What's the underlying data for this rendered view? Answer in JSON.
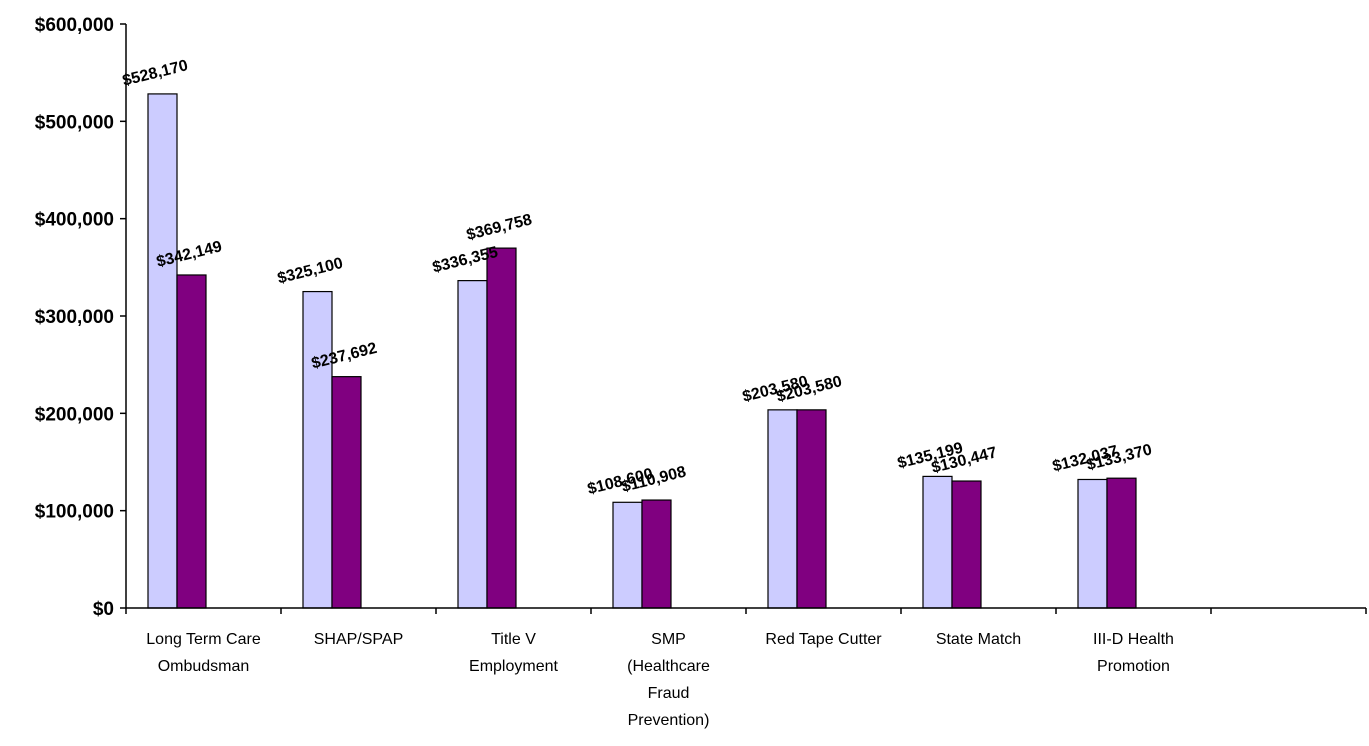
{
  "chart_data": {
    "type": "bar",
    "categories": [
      [
        "Long Term Care",
        "Ombudsman"
      ],
      [
        "SHAP/SPAP"
      ],
      [
        "Title V",
        "Employment"
      ],
      [
        "SMP",
        "(Healthcare",
        "Fraud",
        "Prevention)"
      ],
      [
        "Red Tape Cutter"
      ],
      [
        "State Match"
      ],
      [
        "III-D Health",
        "Promotion"
      ]
    ],
    "series": [
      {
        "values": [
          528170,
          325100,
          336355,
          108600,
          203580,
          135199,
          132037
        ],
        "labels": [
          "$528,170",
          "$325,100",
          "$336,355",
          "$108,600",
          "$203,580",
          "$135,199",
          "$132,037"
        ],
        "color": "#ccccff"
      },
      {
        "values": [
          342149,
          237692,
          369758,
          110908,
          203580,
          130447,
          133370
        ],
        "labels": [
          "$342,149",
          "$237,692",
          "$369,758",
          "$110,908",
          "$203,580",
          "$130,447",
          "$133,370"
        ],
        "color": "#800080"
      }
    ],
    "ylim": [
      0,
      600000
    ],
    "yticks": [
      "$0",
      "$100,000",
      "$200,000",
      "$300,000",
      "$400,000",
      "$500,000",
      "$600,000"
    ],
    "category_slots": 8,
    "grid": false,
    "legend": "none",
    "title": "",
    "xlabel": "",
    "ylabel": ""
  }
}
